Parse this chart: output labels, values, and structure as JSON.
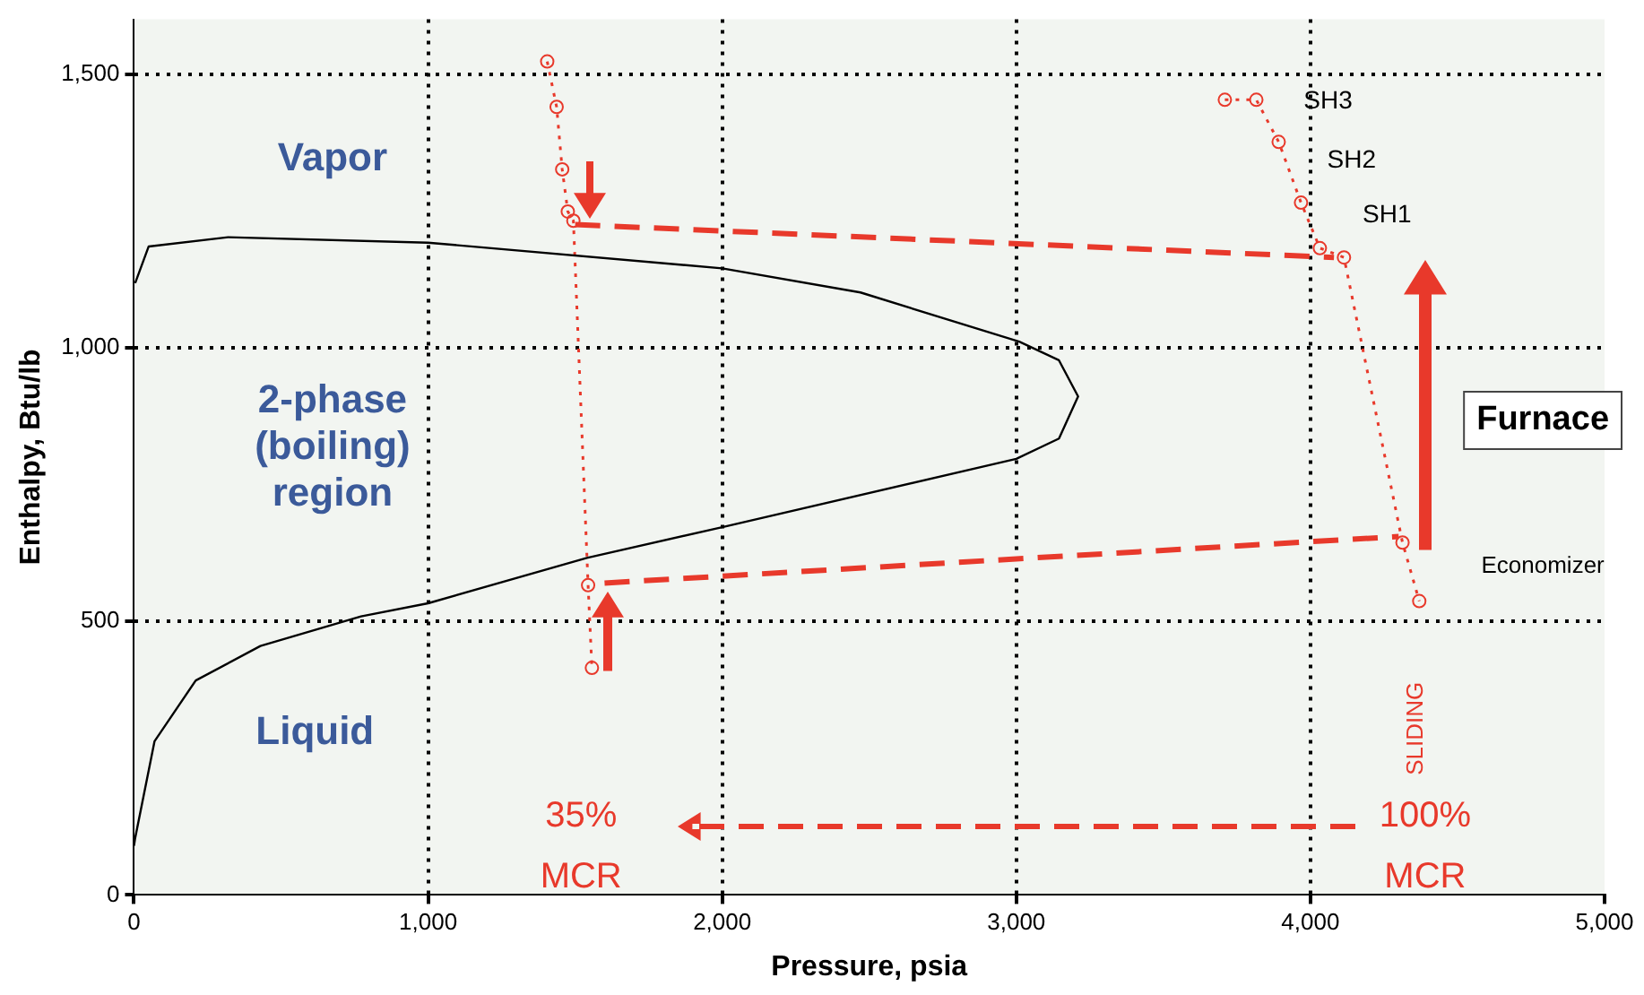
{
  "chart_data": {
    "type": "line",
    "xlabel": "Pressure, psia",
    "ylabel": "Enthalpy, Btu/lb",
    "xlim": [
      0,
      5000
    ],
    "ylim": [
      0,
      1600
    ],
    "xticks": [
      0,
      {
        "value": 1000,
        "label": "1,000"
      },
      {
        "value": 2000,
        "label": "2,000"
      },
      {
        "value": 3000,
        "label": "3,000"
      },
      {
        "value": 4000,
        "label": "4,000"
      },
      {
        "value": 5000,
        "label": "5,000"
      }
    ],
    "yticks": [
      0,
      500,
      {
        "value": 1000,
        "label": "1,000"
      },
      {
        "value": 1500,
        "label": "1,500"
      }
    ],
    "grid": true,
    "legend": false,
    "series": [
      {
        "color": "#000000",
        "line_style": "solid",
        "marker": "none",
        "x": [
          0,
          4,
          70,
          210,
          430,
          772,
          1000,
          1540,
          2000,
          3000,
          3145,
          3210,
          3145,
          3010,
          2470,
          2000,
          1000,
          320,
          50,
          4
        ],
        "values": [
          90,
          104,
          281,
          392,
          455,
          509,
          533,
          616,
          672,
          797,
          834,
          911,
          977,
          1011,
          1101,
          1145,
          1192,
          1202,
          1185,
          1118
        ]
      },
      {
        "color": "#e8392b",
        "line_style": "dotted",
        "marker": "circle",
        "x": [
          1405,
          1437,
          1456,
          1475,
          1494,
          1544,
          1557
        ],
        "values": [
          1523,
          1440,
          1326,
          1249,
          1232,
          566,
          415
        ]
      },
      {
        "color": "#e8392b",
        "line_style": "dotted",
        "marker": "circle",
        "x": [
          3709,
          3816,
          3892,
          3968,
          4032,
          4114,
          4313,
          4370
        ],
        "values": [
          1453,
          1453,
          1376,
          1265,
          1182,
          1165,
          644,
          537
        ]
      },
      {
        "color": "#e8392b",
        "line_style": "dashed",
        "marker": "none",
        "x": [
          1500,
          4080
        ],
        "values": [
          1225,
          1165
        ]
      },
      {
        "color": "#e8392b",
        "line_style": "dashed",
        "marker": "none",
        "x": [
          1600,
          4300
        ],
        "values": [
          570,
          655
        ]
      }
    ],
    "annotations": [
      "Vapor",
      "2-phase (boiling) region",
      "Liquid",
      "SH3",
      "SH2",
      "SH1",
      "Furnace",
      "Economizer",
      "SLIDING",
      "35%",
      "MCR",
      "100%",
      "MCR"
    ]
  }
}
